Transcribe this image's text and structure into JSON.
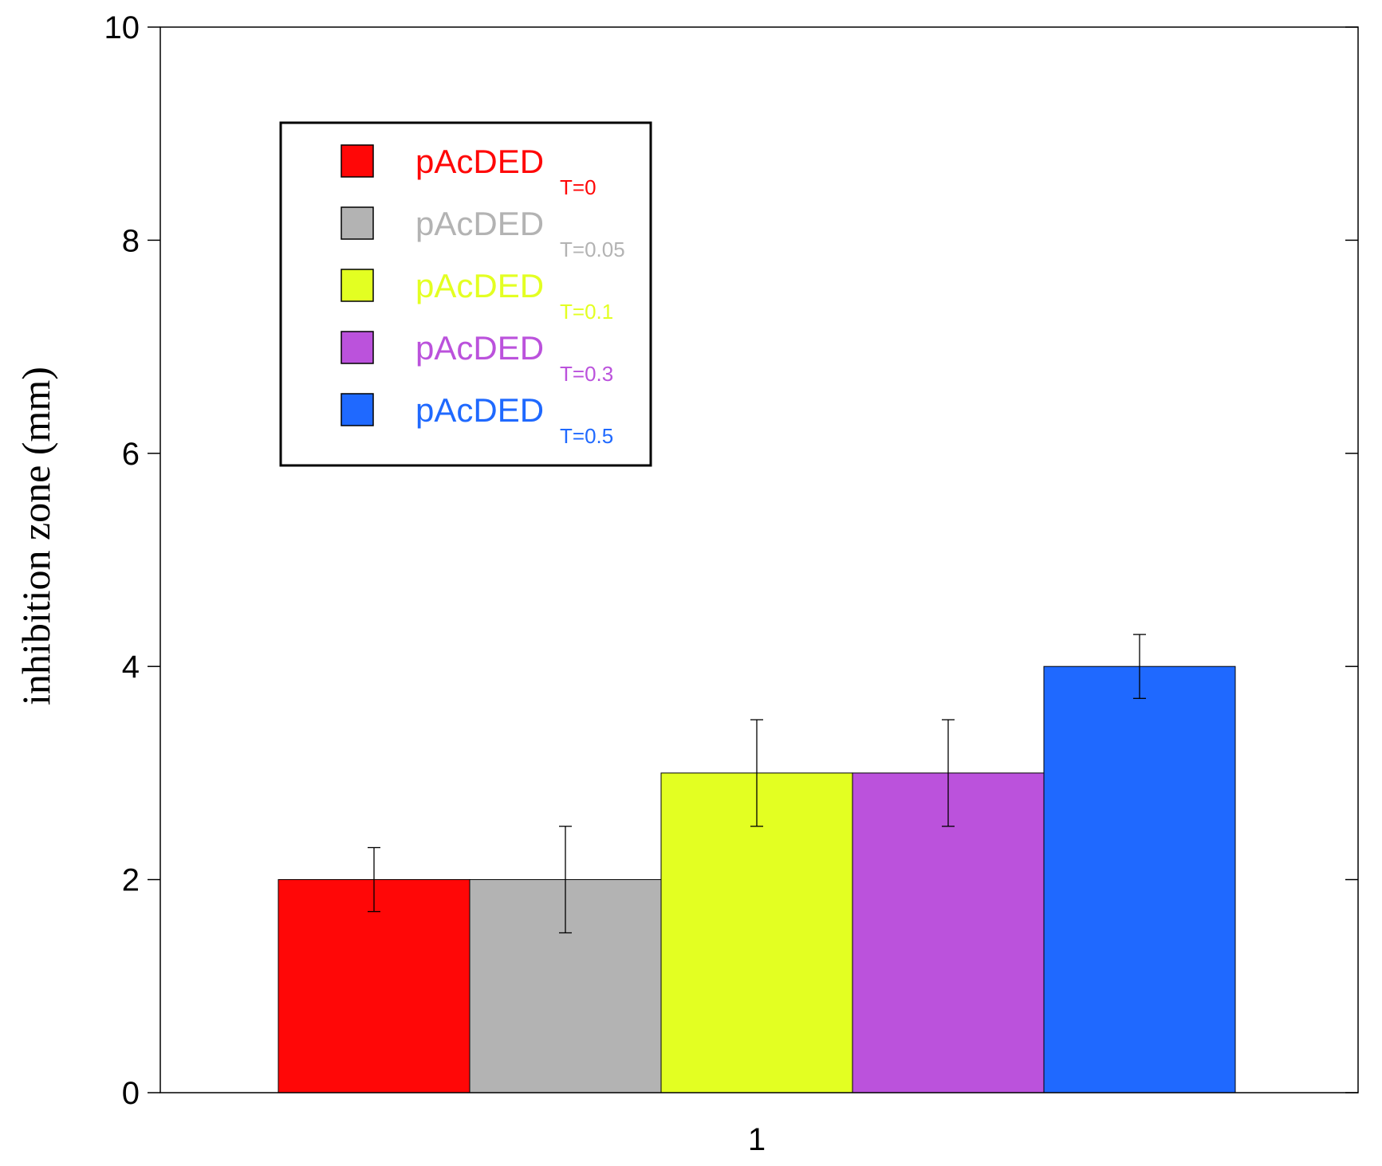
{
  "chart_data": {
    "type": "bar",
    "ylabel": "inhibition zone (mm)",
    "xlabel": "",
    "ylim": [
      0,
      10
    ],
    "yticks": [
      "0",
      "2",
      "4",
      "6",
      "8",
      "10"
    ],
    "categories": [
      "1"
    ],
    "legend_position": "top-left",
    "grid": false,
    "series": [
      {
        "name": "pAcDED",
        "subscript": "T=0",
        "color": "#ff0707",
        "values": [
          2.0
        ],
        "errors": [
          0.3
        ]
      },
      {
        "name": "pAcDED",
        "subscript": "T=0.05",
        "color": "#b3b3b3",
        "values": [
          2.0
        ],
        "errors": [
          0.5
        ]
      },
      {
        "name": "pAcDED",
        "subscript": "T=0.1",
        "color": "#e3ff22",
        "values": [
          3.0
        ],
        "errors": [
          0.5
        ]
      },
      {
        "name": "pAcDED",
        "subscript": "T=0.3",
        "color": "#bb52dc",
        "values": [
          3.0
        ],
        "errors": [
          0.5
        ]
      },
      {
        "name": "pAcDED",
        "subscript": "T=0.5",
        "color": "#1f69ff",
        "values": [
          4.0
        ],
        "errors": [
          0.3
        ]
      }
    ]
  }
}
